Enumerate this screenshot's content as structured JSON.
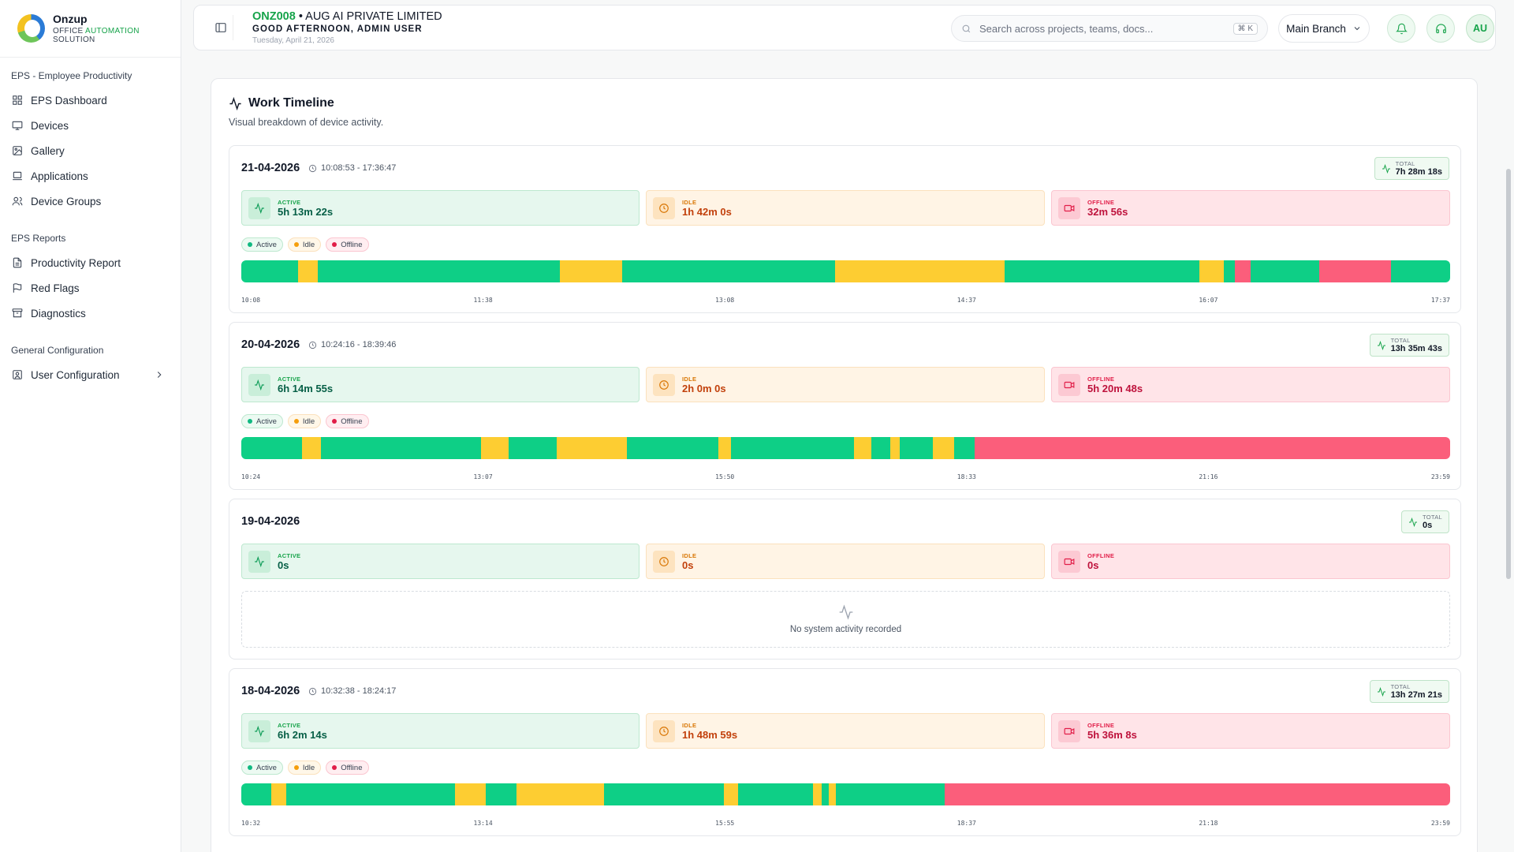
{
  "brand": {
    "name": "Onzup",
    "sub_prefix": "OFFICE ",
    "sub_accent": "AUTOMATION",
    "sub_suffix": " SOLUTION"
  },
  "sidebar": {
    "sections": [
      {
        "heading": "EPS - Employee Productivity",
        "items": [
          {
            "label": "EPS Dashboard",
            "icon": "dashboard-icon"
          },
          {
            "label": "Devices",
            "icon": "monitor-icon"
          },
          {
            "label": "Gallery",
            "icon": "image-icon"
          },
          {
            "label": "Applications",
            "icon": "laptop-icon"
          },
          {
            "label": "Device Groups",
            "icon": "users-icon"
          }
        ]
      },
      {
        "heading": "EPS Reports",
        "items": [
          {
            "label": "Productivity Report",
            "icon": "report-icon"
          },
          {
            "label": "Red Flags",
            "icon": "flag-icon"
          },
          {
            "label": "Diagnostics",
            "icon": "archive-icon"
          }
        ]
      },
      {
        "heading": "General Configuration",
        "items": [
          {
            "label": "User Configuration",
            "icon": "user-config-icon"
          }
        ]
      }
    ]
  },
  "header": {
    "code": "ONZ008",
    "separator": "•",
    "company": "AUG AI PRIVATE LIMITED",
    "greeting": "GOOD AFTERNOON, ADMIN USER",
    "date": "Tuesday, April 21, 2026",
    "search_placeholder": "Search across projects, teams, docs...",
    "search_shortcut": "⌘ K",
    "branch": "Main Branch",
    "avatar": "AU"
  },
  "timeline": {
    "title": "Work Timeline",
    "subtitle": "Visual breakdown of device activity.",
    "labels": {
      "active": "ACTIVE",
      "idle": "IDLE",
      "offline": "OFFLINE",
      "total": "TOTAL",
      "legend_active": "Active",
      "legend_idle": "Idle",
      "legend_offline": "Offline",
      "empty": "No system activity recorded"
    },
    "colors": {
      "active": "#0ecf86",
      "idle": "#fdcd32",
      "offline": "#fb5e7b"
    },
    "days": [
      {
        "date": "21-04-2026",
        "range": "10:08:53 - 17:36:47",
        "total": "7h 28m 18s",
        "active": "5h 13m 22s",
        "idle": "1h 42m 0s",
        "offline": "32m 56s",
        "segments": [
          [
            "a",
            4.7
          ],
          [
            "i",
            1.6
          ],
          [
            "a",
            20.0
          ],
          [
            "i",
            5.2
          ],
          [
            "a",
            17.6
          ],
          [
            "i",
            14.0
          ],
          [
            "a",
            16.1
          ],
          [
            "i",
            2.0
          ],
          [
            "a",
            0.9
          ],
          [
            "o",
            1.3
          ],
          [
            "a",
            5.7
          ],
          [
            "o",
            5.9
          ],
          [
            "a",
            4.9
          ]
        ],
        "ticks": [
          "10:08",
          "11:38",
          "13:08",
          "14:37",
          "16:07",
          "17:37"
        ]
      },
      {
        "date": "20-04-2026",
        "range": "10:24:16 - 18:39:46",
        "total": "13h 35m 43s",
        "active": "6h 14m 55s",
        "idle": "2h 0m 0s",
        "offline": "5h 20m 48s",
        "segments": [
          [
            "a",
            5.0
          ],
          [
            "i",
            1.6
          ],
          [
            "a",
            13.2
          ],
          [
            "i",
            2.3
          ],
          [
            "a",
            4.0
          ],
          [
            "i",
            5.8
          ],
          [
            "a",
            7.6
          ],
          [
            "i",
            1.0
          ],
          [
            "a",
            10.2
          ],
          [
            "i",
            1.4
          ],
          [
            "a",
            1.6
          ],
          [
            "i",
            0.8
          ],
          [
            "a",
            2.7
          ],
          [
            "i",
            1.8
          ],
          [
            "a",
            1.7
          ],
          [
            "o",
            39.3
          ]
        ],
        "ticks": [
          "10:24",
          "13:07",
          "15:50",
          "18:33",
          "21:16",
          "23:59"
        ]
      },
      {
        "date": "19-04-2026",
        "range": "",
        "total": "0s",
        "active": "0s",
        "idle": "0s",
        "offline": "0s",
        "segments": [],
        "ticks": []
      },
      {
        "date": "18-04-2026",
        "range": "10:32:38 - 18:24:17",
        "total": "13h 27m 21s",
        "active": "6h 2m 14s",
        "idle": "1h 48m 59s",
        "offline": "5h 36m 8s",
        "segments": [
          [
            "a",
            2.5
          ],
          [
            "i",
            1.2
          ],
          [
            "a",
            14.0
          ],
          [
            "i",
            2.5
          ],
          [
            "a",
            2.6
          ],
          [
            "i",
            7.2
          ],
          [
            "a",
            9.9
          ],
          [
            "i",
            1.2
          ],
          [
            "a",
            6.2
          ],
          [
            "i",
            0.7
          ],
          [
            "a",
            0.6
          ],
          [
            "i",
            0.6
          ],
          [
            "a",
            9.0
          ],
          [
            "o",
            41.8
          ]
        ],
        "ticks": [
          "10:32",
          "13:14",
          "15:55",
          "18:37",
          "21:18",
          "23:59"
        ]
      }
    ]
  }
}
